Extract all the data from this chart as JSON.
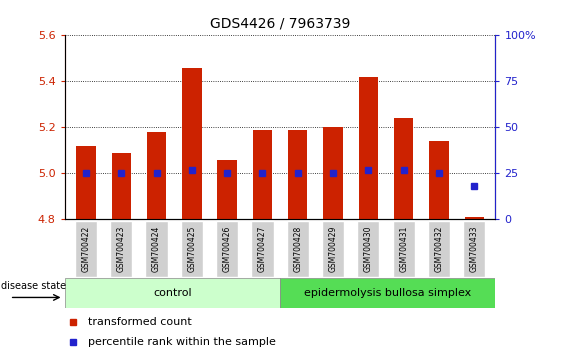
{
  "title": "GDS4426 / 7963739",
  "samples": [
    "GSM700422",
    "GSM700423",
    "GSM700424",
    "GSM700425",
    "GSM700426",
    "GSM700427",
    "GSM700428",
    "GSM700429",
    "GSM700430",
    "GSM700431",
    "GSM700432",
    "GSM700433"
  ],
  "bar_values": [
    5.12,
    5.09,
    5.18,
    5.46,
    5.06,
    5.19,
    5.19,
    5.2,
    5.42,
    5.24,
    5.14,
    4.81
  ],
  "bar_bottom": 4.8,
  "percentile_values": [
    25,
    25,
    25,
    27,
    25,
    25,
    25,
    25,
    27,
    27,
    25,
    18
  ],
  "ylim_left": [
    4.8,
    5.6
  ],
  "ylim_right": [
    0,
    100
  ],
  "yticks_left": [
    4.8,
    5.0,
    5.2,
    5.4,
    5.6
  ],
  "yticks_right": [
    0,
    25,
    50,
    75,
    100
  ],
  "bar_color": "#cc2200",
  "dot_color": "#2222cc",
  "control_label": "control",
  "ebs_label": "epidermolysis bullosa simplex",
  "control_color": "#ccffcc",
  "ebs_color": "#55dd55",
  "disease_label": "disease state",
  "legend_bar_label": "transformed count",
  "legend_dot_label": "percentile rank within the sample",
  "tick_color_left": "#cc2200",
  "tick_color_right": "#2222cc",
  "right_tick_labels": [
    "0",
    "25",
    "50",
    "75",
    "100%"
  ]
}
